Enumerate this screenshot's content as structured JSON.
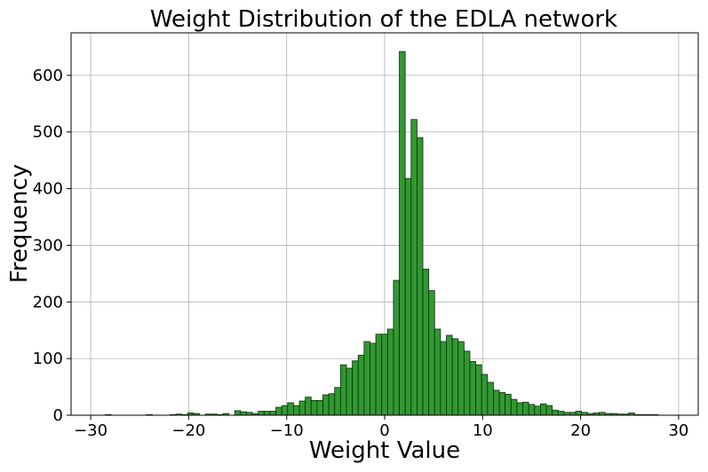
{
  "chart_data": {
    "type": "bar",
    "title": "Weight Distribution of the EDLA network",
    "xlabel": "Weight Value",
    "ylabel": "Frequency",
    "xlim": [
      -32,
      32
    ],
    "ylim": [
      0,
      675
    ],
    "xticks": [
      -30,
      -20,
      -10,
      0,
      10,
      20,
      30
    ],
    "xtick_labels": [
      "−30",
      "−20",
      "−10",
      "0",
      "10",
      "20",
      "30"
    ],
    "yticks": [
      0,
      100,
      200,
      300,
      400,
      500,
      600
    ],
    "ytick_labels": [
      "0",
      "100",
      "200",
      "300",
      "400",
      "500",
      "600"
    ],
    "grid": true,
    "bar_color": "#2e9a2e",
    "edge_color": "#1f1f1f",
    "bin_start": -28.5,
    "bin_width": 0.6,
    "counts": [
      1,
      0,
      0,
      0,
      0,
      0,
      0,
      1,
      0,
      0,
      0,
      1,
      2,
      1,
      4,
      3,
      0,
      2,
      2,
      1,
      3,
      0,
      8,
      6,
      5,
      3,
      7,
      7,
      7,
      14,
      17,
      22,
      17,
      25,
      32,
      26,
      26,
      36,
      38,
      49,
      89,
      83,
      96,
      106,
      130,
      127,
      143,
      143,
      152,
      238,
      642,
      418,
      522,
      490,
      258,
      220,
      152,
      130,
      141,
      135,
      130,
      113,
      95,
      89,
      72,
      58,
      44,
      40,
      37,
      28,
      22,
      23,
      19,
      16,
      20,
      17,
      9,
      7,
      5,
      5,
      7,
      5,
      3,
      4,
      5,
      3,
      3,
      2,
      2,
      4,
      1,
      1,
      1,
      1,
      0,
      0,
      0,
      0,
      0,
      0,
      0,
      0,
      0,
      0,
      1
    ]
  }
}
